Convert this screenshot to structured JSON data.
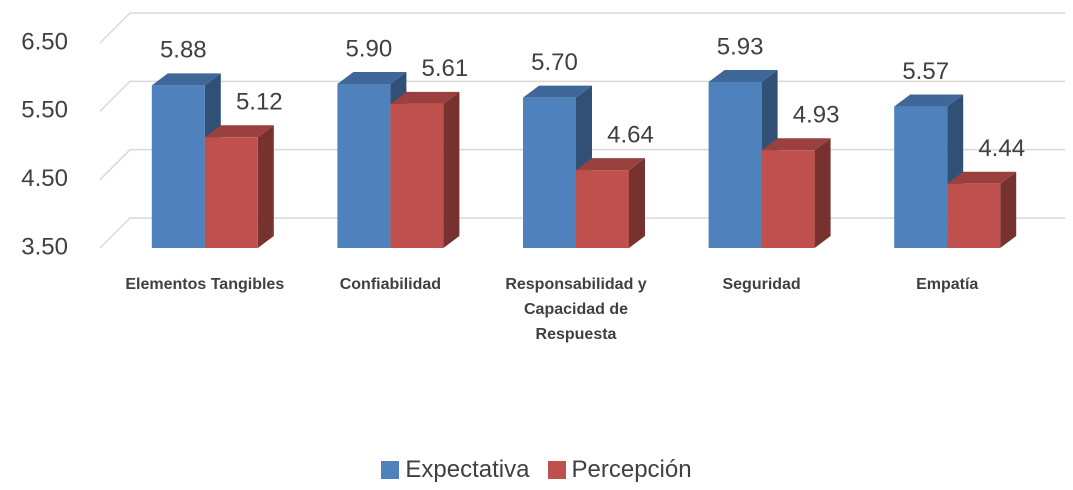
{
  "chart_data": {
    "type": "bar3d",
    "categories": [
      "Elementos Tangibles",
      "Confiabilidad",
      "Responsabilidad y Capacidad de Respuesta",
      "Seguridad",
      "Empatía"
    ],
    "series": [
      {
        "name": "Expectativa",
        "color": "#4f81bd",
        "values": [
          5.88,
          5.9,
          5.7,
          5.93,
          5.57
        ],
        "value_labels": [
          "5.88",
          "5.90",
          "5.70",
          "5.93",
          "5.57"
        ]
      },
      {
        "name": "Percepción",
        "color": "#c0504d",
        "values": [
          5.12,
          5.61,
          4.64,
          4.93,
          4.44
        ],
        "value_labels": [
          "5.12",
          "5.61",
          "4.64",
          "4.93",
          "4.44"
        ]
      }
    ],
    "ylim": [
      3.5,
      6.5
    ],
    "yticks": [
      {
        "value": 3.5,
        "label": "3.50"
      },
      {
        "value": 4.5,
        "label": "4.50"
      },
      {
        "value": 5.5,
        "label": "5.50"
      },
      {
        "value": 6.5,
        "label": "6.50"
      }
    ],
    "grid": true,
    "legend": "bottom"
  }
}
